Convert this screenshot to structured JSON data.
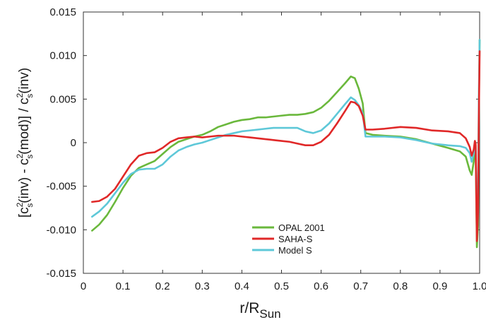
{
  "chart_data": {
    "type": "line",
    "xlabel": {
      "main": "r/R",
      "sub": "Sun"
    },
    "ylabel": {
      "parts": [
        {
          "t": "[c",
          "k": "n"
        },
        {
          "t": "2",
          "k": "sup"
        },
        {
          "t": "s",
          "k": "sub"
        },
        {
          "t": "(inv) - c",
          "k": "n"
        },
        {
          "t": "2",
          "k": "sup"
        },
        {
          "t": "s",
          "k": "sub"
        },
        {
          "t": "(mod)] / c",
          "k": "n"
        },
        {
          "t": "2",
          "k": "sup"
        },
        {
          "t": "s",
          "k": "sub"
        },
        {
          "t": "(inv)",
          "k": "n"
        }
      ]
    },
    "xlim": [
      0,
      1.0
    ],
    "ylim": [
      -0.015,
      0.015
    ],
    "xticks": [
      "0",
      "0.1",
      "0.2",
      "0.3",
      "0.4",
      "0.5",
      "0.6",
      "0.7",
      "0.8",
      "0.9",
      "1.0"
    ],
    "xtick_values": [
      0,
      0.1,
      0.2,
      0.3,
      0.4,
      0.5,
      0.6,
      0.7,
      0.8,
      0.9,
      1.0
    ],
    "yticks": [
      "-0.015",
      "-0.010",
      "-0.005",
      "0",
      "0.005",
      "0.010",
      "0.015"
    ],
    "ytick_values": [
      -0.015,
      -0.01,
      -0.005,
      0,
      0.005,
      0.01,
      0.015
    ],
    "grid": false,
    "legend_position": "bottom-center",
    "series": [
      {
        "name": "OPAL 2001",
        "color": "#6ab83c",
        "points": [
          [
            0.022,
            -0.0101
          ],
          [
            0.04,
            -0.0094
          ],
          [
            0.06,
            -0.0083
          ],
          [
            0.08,
            -0.0068
          ],
          [
            0.1,
            -0.0052
          ],
          [
            0.12,
            -0.0038
          ],
          [
            0.14,
            -0.0029
          ],
          [
            0.16,
            -0.0025
          ],
          [
            0.18,
            -0.0021
          ],
          [
            0.2,
            -0.0013
          ],
          [
            0.22,
            -0.0005
          ],
          [
            0.24,
            0.0001
          ],
          [
            0.26,
            0.0004
          ],
          [
            0.28,
            0.0007
          ],
          [
            0.3,
            0.0009
          ],
          [
            0.32,
            0.0013
          ],
          [
            0.34,
            0.0018
          ],
          [
            0.36,
            0.0021
          ],
          [
            0.38,
            0.0024
          ],
          [
            0.4,
            0.0026
          ],
          [
            0.42,
            0.0027
          ],
          [
            0.44,
            0.0029
          ],
          [
            0.46,
            0.0029
          ],
          [
            0.48,
            0.003
          ],
          [
            0.5,
            0.0031
          ],
          [
            0.52,
            0.0032
          ],
          [
            0.54,
            0.0032
          ],
          [
            0.56,
            0.0033
          ],
          [
            0.58,
            0.0035
          ],
          [
            0.6,
            0.004
          ],
          [
            0.62,
            0.0048
          ],
          [
            0.64,
            0.0058
          ],
          [
            0.66,
            0.0068
          ],
          [
            0.675,
            0.0076
          ],
          [
            0.685,
            0.0074
          ],
          [
            0.695,
            0.0062
          ],
          [
            0.705,
            0.0045
          ],
          [
            0.712,
            0.0011
          ],
          [
            0.73,
            0.0009
          ],
          [
            0.76,
            0.0008
          ],
          [
            0.8,
            0.0007
          ],
          [
            0.84,
            0.0004
          ],
          [
            0.88,
            -0.0001
          ],
          [
            0.92,
            -0.0006
          ],
          [
            0.95,
            -0.001
          ],
          [
            0.965,
            -0.0016
          ],
          [
            0.975,
            -0.0032
          ],
          [
            0.98,
            -0.0037
          ],
          [
            0.985,
            -0.0022
          ],
          [
            0.988,
            -0.0005
          ],
          [
            0.99,
            -0.001
          ],
          [
            0.993,
            -0.012
          ],
          [
            0.996,
            -0.0095
          ],
          [
            0.998,
            0.004
          ],
          [
            1.0,
            0.0118
          ]
        ]
      },
      {
        "name": "SAHA-S",
        "color": "#e02828",
        "points": [
          [
            0.022,
            -0.0068
          ],
          [
            0.04,
            -0.0067
          ],
          [
            0.06,
            -0.0062
          ],
          [
            0.08,
            -0.0053
          ],
          [
            0.1,
            -0.0039
          ],
          [
            0.12,
            -0.0025
          ],
          [
            0.14,
            -0.0015
          ],
          [
            0.16,
            -0.0012
          ],
          [
            0.18,
            -0.0011
          ],
          [
            0.2,
            -0.0006
          ],
          [
            0.22,
            0.0001
          ],
          [
            0.24,
            0.0005
          ],
          [
            0.26,
            0.0006
          ],
          [
            0.28,
            0.0007
          ],
          [
            0.3,
            0.0006
          ],
          [
            0.32,
            0.0007
          ],
          [
            0.34,
            0.0008
          ],
          [
            0.36,
            0.0008
          ],
          [
            0.38,
            0.0008
          ],
          [
            0.4,
            0.0007
          ],
          [
            0.42,
            0.0006
          ],
          [
            0.44,
            0.0005
          ],
          [
            0.46,
            0.0004
          ],
          [
            0.48,
            0.0003
          ],
          [
            0.5,
            0.0002
          ],
          [
            0.52,
            0.0001
          ],
          [
            0.54,
            -0.0001
          ],
          [
            0.56,
            -0.0003
          ],
          [
            0.58,
            -0.0003
          ],
          [
            0.6,
            0.0001
          ],
          [
            0.62,
            0.0009
          ],
          [
            0.64,
            0.0022
          ],
          [
            0.66,
            0.0036
          ],
          [
            0.675,
            0.0047
          ],
          [
            0.685,
            0.0046
          ],
          [
            0.695,
            0.0042
          ],
          [
            0.705,
            0.0031
          ],
          [
            0.712,
            0.0015
          ],
          [
            0.73,
            0.0015
          ],
          [
            0.76,
            0.0016
          ],
          [
            0.8,
            0.0018
          ],
          [
            0.84,
            0.0017
          ],
          [
            0.88,
            0.0014
          ],
          [
            0.92,
            0.0013
          ],
          [
            0.95,
            0.0011
          ],
          [
            0.965,
            0.0005
          ],
          [
            0.975,
            -0.0005
          ],
          [
            0.98,
            -0.0015
          ],
          [
            0.985,
            -0.0008
          ],
          [
            0.988,
            0.0002
          ],
          [
            0.99,
            -0.0002
          ],
          [
            0.993,
            -0.0113
          ],
          [
            0.996,
            -0.008
          ],
          [
            0.998,
            0.003
          ],
          [
            1.0,
            0.0105
          ]
        ]
      },
      {
        "name": "Model S",
        "color": "#5ec8d8",
        "points": [
          [
            0.022,
            -0.0085
          ],
          [
            0.04,
            -0.0079
          ],
          [
            0.06,
            -0.007
          ],
          [
            0.08,
            -0.0058
          ],
          [
            0.1,
            -0.0046
          ],
          [
            0.12,
            -0.0036
          ],
          [
            0.14,
            -0.0031
          ],
          [
            0.16,
            -0.003
          ],
          [
            0.18,
            -0.003
          ],
          [
            0.2,
            -0.0025
          ],
          [
            0.22,
            -0.0016
          ],
          [
            0.24,
            -0.0009
          ],
          [
            0.26,
            -0.0005
          ],
          [
            0.28,
            -0.0002
          ],
          [
            0.3,
            0.0
          ],
          [
            0.32,
            0.0003
          ],
          [
            0.34,
            0.0006
          ],
          [
            0.36,
            0.0009
          ],
          [
            0.38,
            0.0011
          ],
          [
            0.4,
            0.0013
          ],
          [
            0.42,
            0.0014
          ],
          [
            0.44,
            0.0015
          ],
          [
            0.46,
            0.0016
          ],
          [
            0.48,
            0.0017
          ],
          [
            0.5,
            0.0017
          ],
          [
            0.52,
            0.0017
          ],
          [
            0.54,
            0.0017
          ],
          [
            0.56,
            0.0013
          ],
          [
            0.58,
            0.0011
          ],
          [
            0.6,
            0.0014
          ],
          [
            0.62,
            0.0022
          ],
          [
            0.64,
            0.0033
          ],
          [
            0.66,
            0.0044
          ],
          [
            0.675,
            0.0052
          ],
          [
            0.685,
            0.0049
          ],
          [
            0.695,
            0.0043
          ],
          [
            0.705,
            0.0034
          ],
          [
            0.712,
            0.0007
          ],
          [
            0.73,
            0.0007
          ],
          [
            0.76,
            0.0007
          ],
          [
            0.8,
            0.0006
          ],
          [
            0.84,
            0.0003
          ],
          [
            0.88,
            -0.0001
          ],
          [
            0.92,
            -0.0003
          ],
          [
            0.95,
            -0.0004
          ],
          [
            0.965,
            -0.0006
          ],
          [
            0.975,
            -0.0012
          ],
          [
            0.98,
            -0.0022
          ],
          [
            0.985,
            -0.0012
          ],
          [
            0.988,
            0.0002
          ],
          [
            0.99,
            -0.0004
          ],
          [
            0.993,
            -0.0095
          ],
          [
            0.996,
            -0.006
          ],
          [
            0.998,
            0.005
          ],
          [
            1.0,
            0.0118
          ]
        ]
      }
    ]
  }
}
